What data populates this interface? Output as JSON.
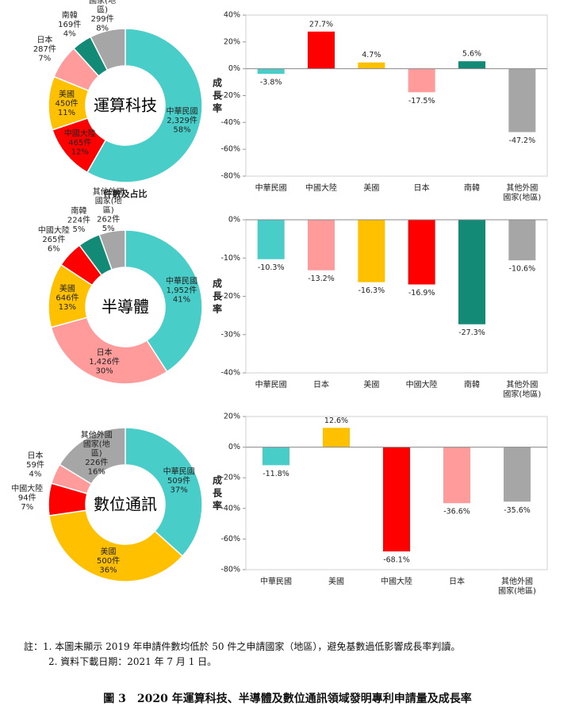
{
  "chart_data": [
    {
      "type": "donut",
      "center_label": "運算科技",
      "subtitle": "件數及占比",
      "categories": [
        "中華民國",
        "中國大陸",
        "美國",
        "日本",
        "南韓",
        "其他外國國家(地區)"
      ],
      "values": [
        2329,
        465,
        450,
        287,
        169,
        299
      ],
      "value_labels": [
        "2,329件",
        "465件",
        "450件",
        "287件",
        "169件",
        "299件"
      ],
      "shares": [
        58,
        12,
        11,
        7,
        4,
        8
      ],
      "share_labels": [
        "58%",
        "12%",
        "11%",
        "7%",
        "4%",
        "8%"
      ],
      "colors": [
        "#48cdc8",
        "#ff0000",
        "#ffc000",
        "#ff9b9b",
        "#138a76",
        "#a6a6a6"
      ]
    },
    {
      "type": "bar",
      "y_label": "成長率",
      "categories": [
        "中華民國",
        "中國大陸",
        "美國",
        "日本",
        "南韓",
        "其他外國國家(地區)"
      ],
      "values": [
        -3.8,
        27.7,
        4.7,
        -17.5,
        5.6,
        -47.2
      ],
      "value_labels": [
        "-3.8%",
        "27.7%",
        "4.7%",
        "-17.5%",
        "5.6%",
        "-47.2%"
      ],
      "colors": [
        "#48cdc8",
        "#ff0000",
        "#ffc000",
        "#ff9b9b",
        "#138a76",
        "#a6a6a6"
      ],
      "ylim": [
        -80,
        40
      ],
      "yticks": [
        {
          "value": -80,
          "label": "-80%"
        },
        {
          "value": -60,
          "label": "-60%"
        },
        {
          "value": -40,
          "label": "-40%"
        },
        {
          "value": -20,
          "label": "-20%"
        },
        {
          "value": 0,
          "label": "0%"
        },
        {
          "value": 20,
          "label": "20%"
        },
        {
          "value": 40,
          "label": "40%"
        }
      ]
    },
    {
      "type": "donut",
      "center_label": "半導體",
      "categories": [
        "中華民國",
        "日本",
        "美國",
        "中國大陸",
        "南韓",
        "其他外國國家(地區)"
      ],
      "values": [
        1952,
        1426,
        646,
        265,
        224,
        262
      ],
      "value_labels": [
        "1,952件",
        "1,426件",
        "646件",
        "265件",
        "224件",
        "262件"
      ],
      "shares": [
        41,
        30,
        13,
        6,
        5,
        5
      ],
      "share_labels": [
        "41%",
        "30%",
        "13%",
        "6%",
        "5%",
        "5%"
      ],
      "colors": [
        "#48cdc8",
        "#ff9b9b",
        "#ffc000",
        "#ff0000",
        "#138a76",
        "#a6a6a6"
      ]
    },
    {
      "type": "bar",
      "y_label": "成長率",
      "categories": [
        "中華民國",
        "日本",
        "美國",
        "中國大陸",
        "南韓",
        "其他外國國家(地區)"
      ],
      "values": [
        -10.3,
        -13.2,
        -16.3,
        -16.9,
        -27.3,
        -10.6
      ],
      "value_labels": [
        "-10.3%",
        "-13.2%",
        "-16.3%",
        "-16.9%",
        "-27.3%",
        "-10.6%"
      ],
      "colors": [
        "#48cdc8",
        "#ff9b9b",
        "#ffc000",
        "#ff0000",
        "#138a76",
        "#a6a6a6"
      ],
      "ylim": [
        -40,
        0
      ],
      "yticks": [
        {
          "value": -40,
          "label": "-40%"
        },
        {
          "value": -30,
          "label": "-30%"
        },
        {
          "value": -20,
          "label": "-20%"
        },
        {
          "value": -10,
          "label": "-10%"
        },
        {
          "value": 0,
          "label": "0%"
        }
      ]
    },
    {
      "type": "donut",
      "center_label": "數位通訊",
      "categories": [
        "中華民國",
        "美國",
        "中國大陸",
        "日本",
        "其他外國國家(地區)"
      ],
      "values": [
        509,
        500,
        94,
        59,
        226
      ],
      "value_labels": [
        "509件",
        "500件",
        "94件",
        "59件",
        "226件"
      ],
      "shares": [
        37,
        36,
        7,
        4,
        16
      ],
      "share_labels": [
        "37%",
        "36%",
        "7%",
        "4%",
        "16%"
      ],
      "colors": [
        "#48cdc8",
        "#ffc000",
        "#ff0000",
        "#ff9b9b",
        "#a6a6a6"
      ]
    },
    {
      "type": "bar",
      "y_label": "成長率",
      "categories": [
        "中華民國",
        "美國",
        "中國大陸",
        "日本",
        "其他外國國家(地區)"
      ],
      "values": [
        -11.8,
        12.6,
        -68.1,
        -36.6,
        -35.6
      ],
      "value_labels": [
        "-11.8%",
        "12.6%",
        "-68.1%",
        "-36.6%",
        "-35.6%"
      ],
      "colors": [
        "#48cdc8",
        "#ffc000",
        "#ff0000",
        "#ff9b9b",
        "#a6a6a6"
      ],
      "ylim": [
        -80,
        20
      ],
      "yticks": [
        {
          "value": -80,
          "label": "-80%"
        },
        {
          "value": -60,
          "label": "-60%"
        },
        {
          "value": -40,
          "label": "-40%"
        },
        {
          "value": -20,
          "label": "-20%"
        },
        {
          "value": 0,
          "label": "0%"
        },
        {
          "value": 20,
          "label": "20%"
        }
      ]
    }
  ],
  "notes": [
    "註：1. 本圖未顯示 2019 年申請件數均低於 50 件之申請國家（地區），避免基數過低影響成長率判讀。",
    "2. 資料下載日期：2021 年 7 月 1 日。"
  ],
  "caption": "圖 3　2020 年運算科技、半導體及數位通訊領域發明專利申請量及成長率"
}
